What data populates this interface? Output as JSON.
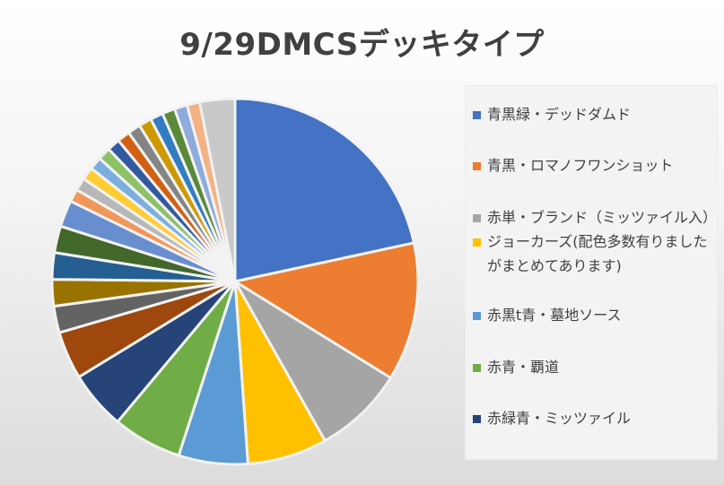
{
  "chart_data": {
    "type": "pie",
    "title": "9/29DMCSデッキタイプ",
    "slices": [
      {
        "label": "青黒緑・デッドダムド",
        "value": 23,
        "color": "#4472C4"
      },
      {
        "label": "青黒・ロマノフワンショット",
        "value": 13,
        "color": "#ED7D31"
      },
      {
        "label": "赤単・ブランド（ミッツァイル入）",
        "value": 8.5,
        "color": "#A5A5A5"
      },
      {
        "label": "ジョーカーズ(配色多数有りましたがまとめてあります)",
        "value": 7.5,
        "color": "#FFC000"
      },
      {
        "label": "赤黒t青・墓地ソース",
        "value": 6.5,
        "color": "#5B9BD5"
      },
      {
        "label": "赤青・覇道",
        "value": 6.5,
        "color": "#70AD47"
      },
      {
        "label": "赤緑青・ミッツァイル",
        "value": 5.5,
        "color": "#264478"
      },
      {
        "label": "",
        "value": 4.5,
        "color": "#9E480E"
      },
      {
        "label": "",
        "value": 2.5,
        "color": "#636363"
      },
      {
        "label": "",
        "value": 2.5,
        "color": "#997300"
      },
      {
        "label": "",
        "value": 2.5,
        "color": "#255E91"
      },
      {
        "label": "",
        "value": 2.5,
        "color": "#43682B"
      },
      {
        "label": "",
        "value": 2.5,
        "color": "#698ED0"
      },
      {
        "label": "",
        "value": 1.2,
        "color": "#F1975A"
      },
      {
        "label": "",
        "value": 1.2,
        "color": "#B7B7B7"
      },
      {
        "label": "",
        "value": 1.2,
        "color": "#FFCD33"
      },
      {
        "label": "",
        "value": 1.2,
        "color": "#7CAFDD"
      },
      {
        "label": "",
        "value": 1.2,
        "color": "#8CC168"
      },
      {
        "label": "",
        "value": 1.2,
        "color": "#335AA1"
      },
      {
        "label": "",
        "value": 1.2,
        "color": "#D26012"
      },
      {
        "label": "",
        "value": 1.2,
        "color": "#848484"
      },
      {
        "label": "",
        "value": 1.2,
        "color": "#CC9A00"
      },
      {
        "label": "",
        "value": 1.2,
        "color": "#327DC2"
      },
      {
        "label": "",
        "value": 1.2,
        "color": "#5A8A39"
      },
      {
        "label": "",
        "value": 1.2,
        "color": "#8FAADC"
      },
      {
        "label": "",
        "value": 1.2,
        "color": "#F4B183"
      },
      {
        "label": "",
        "value": 3.3,
        "color": "#C9C9C9"
      }
    ],
    "legend_position": "right",
    "legend_visible_entries": 7
  }
}
